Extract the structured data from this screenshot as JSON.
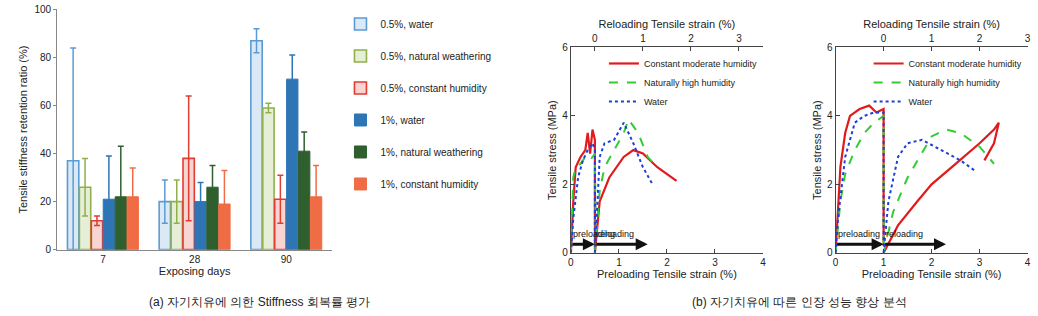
{
  "chart_data": [
    {
      "type": "bar",
      "title": "(a) 자기치유에 의한 Stiffness 회복률 평가",
      "x_label": "Exposing days",
      "y_label": "Tensile stiffness retention ratio (%)",
      "categories": [
        "7",
        "28",
        "90"
      ],
      "ylim": [
        0,
        100
      ],
      "yticks": [
        0,
        20,
        40,
        60,
        80,
        100
      ],
      "grid": false,
      "legend": "right",
      "series": [
        {
          "name": "0.5%, water",
          "color": "#5b9bd5",
          "marker": "light",
          "values": [
            37,
            20,
            87
          ],
          "error": [
            47,
            9,
            5
          ]
        },
        {
          "name": "0.5%, natural weathering",
          "color": "#8fb04a",
          "marker": "light",
          "values": [
            26,
            20,
            59
          ],
          "error": [
            12,
            9,
            2
          ]
        },
        {
          "name": "0.5%, constant humidity",
          "color": "#e03c31",
          "marker": "light",
          "values": [
            12,
            38,
            21
          ],
          "error": [
            2,
            26,
            10
          ]
        },
        {
          "name": "1%, water",
          "color": "#2e75b6",
          "marker": "solid",
          "values": [
            21,
            20,
            71
          ],
          "error": [
            18,
            8,
            10
          ]
        },
        {
          "name": "1%, natural weathering",
          "color": "#2f5f2f",
          "marker": "solid",
          "values": [
            22,
            26,
            41
          ],
          "error": [
            21,
            9,
            8
          ]
        },
        {
          "name": "1%, constant humidity",
          "color": "#ef6c45",
          "marker": "solid",
          "values": [
            22,
            19,
            22
          ],
          "error": [
            12,
            14,
            13
          ]
        }
      ]
    },
    {
      "type": "line",
      "title": "(b) 자기치유에 따른 인장 성능 향상 분석",
      "x_label": "Preloading Tensile strain (%)",
      "x2_label": "Reloading Tensile strain (%)",
      "y_label": "Tensile stress (MPa)",
      "xlim": [
        0,
        4
      ],
      "xticks": [
        0,
        1,
        2,
        3,
        4
      ],
      "ylim": [
        0,
        6
      ],
      "yticks": [
        0,
        2,
        4,
        6
      ],
      "legend": "upper right",
      "panels": [
        {
          "x2lim": [
            -0.5,
            3.5
          ],
          "x2ticks": [
            0,
            1,
            2,
            3
          ],
          "annotations": [
            {
              "text": "preloading",
              "from": 0,
              "to": 0.5,
              "y": 0.25
            },
            {
              "text": "reloading",
              "from": 0.5,
              "to": 1.6,
              "y": 0.25
            }
          ],
          "series": [
            {
              "name": "Constant moderate humidity",
              "color": "#e31a1c",
              "line_style": "solid",
              "axis": "x",
              "x": [
                0,
                0.05,
                0.1,
                0.2,
                0.3,
                0.35,
                0.4,
                0.45,
                0.5,
                0.5
              ],
              "values": [
                0,
                1.5,
                2.5,
                2.8,
                3.0,
                3.5,
                2.9,
                3.6,
                3.3,
                0.1
              ]
            },
            {
              "name": "Naturally high humidity",
              "color": "#33cc33",
              "line_style": "dashed",
              "axis": "x",
              "x": [
                0,
                0.05,
                0.1,
                0.2,
                0.3,
                0.4,
                0.5,
                0.52
              ],
              "values": [
                0,
                2.2,
                2.5,
                2.6,
                2.8,
                2.7,
                2.9,
                0.2
              ]
            },
            {
              "name": "Water",
              "color": "#1f3fd6",
              "line_style": "dotted",
              "axis": "x",
              "x": [
                0,
                0.05,
                0.15,
                0.25,
                0.35,
                0.45,
                0.5,
                0.5
              ],
              "values": [
                0,
                1.0,
                2.2,
                2.7,
                3.0,
                3.2,
                3.0,
                0.2
              ]
            },
            {
              "name": "Constant moderate humidity",
              "color": "#e31a1c",
              "line_style": "solid",
              "axis": "x2",
              "x": [
                0,
                0.1,
                0.3,
                0.6,
                0.8,
                1.0,
                1.3,
                1.7
              ],
              "values": [
                0,
                1.5,
                2.2,
                2.8,
                3.0,
                2.9,
                2.5,
                2.1
              ]
            },
            {
              "name": "Naturally high humidity",
              "color": "#33cc33",
              "line_style": "dashed",
              "axis": "x2",
              "x": [
                0,
                0.1,
                0.2,
                0.4,
                0.6,
                0.7,
                0.9,
                1.1,
                1.3
              ],
              "values": [
                0,
                1.8,
                2.5,
                3.0,
                3.5,
                3.9,
                3.5,
                2.8,
                2.5
              ]
            },
            {
              "name": "Water",
              "color": "#1f3fd6",
              "line_style": "dotted",
              "axis": "x2",
              "x": [
                0,
                0.05,
                0.1,
                0.2,
                0.4,
                0.6,
                0.8,
                1.0,
                1.2
              ],
              "values": [
                0,
                1.5,
                2.8,
                3.2,
                3.3,
                3.8,
                3.2,
                2.5,
                2.0
              ]
            }
          ]
        },
        {
          "x2lim": [
            -1,
            3
          ],
          "x2ticks": [
            0,
            1,
            2,
            3
          ],
          "annotations": [
            {
              "text": "preloading",
              "from": 0,
              "to": 1,
              "y": 0.25
            },
            {
              "text": "reloading",
              "from": 1,
              "to": 2.3,
              "y": 0.25
            }
          ],
          "series": [
            {
              "name": "Constant moderate humidity",
              "color": "#e31a1c",
              "line_style": "solid",
              "axis": "x",
              "x": [
                0,
                0.1,
                0.2,
                0.3,
                0.5,
                0.7,
                0.85,
                1.0,
                1.0
              ],
              "values": [
                0,
                2.5,
                3.5,
                4.0,
                4.2,
                4.3,
                4.1,
                4.2,
                0.3
              ]
            },
            {
              "name": "Naturally high humidity",
              "color": "#33cc33",
              "line_style": "dashed",
              "axis": "x",
              "x": [
                0,
                0.1,
                0.2,
                0.4,
                0.6,
                0.8,
                1.0,
                1.0
              ],
              "values": [
                0,
                1.5,
                2.3,
                3.0,
                3.5,
                3.8,
                4.0,
                0.2
              ]
            },
            {
              "name": "Water",
              "color": "#1f3fd6",
              "line_style": "dotted",
              "axis": "x",
              "x": [
                0,
                0.05,
                0.2,
                0.4,
                0.6,
                0.8,
                1.0,
                1.0
              ],
              "values": [
                0,
                1.0,
                2.8,
                3.8,
                4.0,
                4.1,
                4.1,
                0.2
              ]
            },
            {
              "name": "Constant moderate humidity",
              "color": "#e31a1c",
              "line_style": "solid",
              "axis": "x2",
              "x": [
                0,
                0.3,
                0.7,
                1.0,
                1.5,
                2.0,
                2.3,
                2.4,
                2.3,
                2.1
              ],
              "values": [
                0,
                0.8,
                1.5,
                2.0,
                2.6,
                3.2,
                3.6,
                3.8,
                3.2,
                2.7
              ]
            },
            {
              "name": "Naturally high humidity",
              "color": "#33cc33",
              "line_style": "dashed",
              "axis": "x2",
              "x": [
                0,
                0.2,
                0.5,
                0.8,
                1.0,
                1.3,
                1.6,
                2.0,
                2.3
              ],
              "values": [
                0,
                1.2,
                2.2,
                2.9,
                3.4,
                3.6,
                3.5,
                3.1,
                2.6
              ]
            },
            {
              "name": "Water",
              "color": "#1f3fd6",
              "line_style": "dotted",
              "axis": "x2",
              "x": [
                0,
                0.1,
                0.3,
                0.5,
                0.8,
                1.2,
                1.6,
                1.9
              ],
              "values": [
                0,
                1.5,
                2.8,
                3.2,
                3.3,
                3.0,
                2.7,
                2.4
              ]
            }
          ]
        }
      ]
    }
  ]
}
